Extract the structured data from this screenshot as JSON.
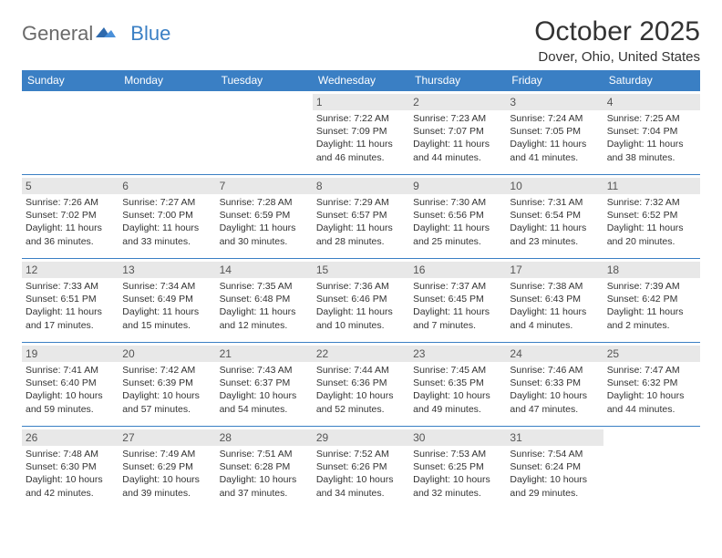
{
  "logo": {
    "part1": "General",
    "part2": "Blue"
  },
  "title": "October 2025",
  "location": "Dover, Ohio, United States",
  "colors": {
    "header_bg": "#3a7fc4",
    "header_text": "#ffffff",
    "daynum_bg": "#e8e8e8",
    "border": "#3a7fc4",
    "body_text": "#333333"
  },
  "columns": [
    "Sunday",
    "Monday",
    "Tuesday",
    "Wednesday",
    "Thursday",
    "Friday",
    "Saturday"
  ],
  "first_weekday_index": 3,
  "days": [
    {
      "n": 1,
      "sunrise": "7:22 AM",
      "sunset": "7:09 PM",
      "daylight": "11 hours and 46 minutes."
    },
    {
      "n": 2,
      "sunrise": "7:23 AM",
      "sunset": "7:07 PM",
      "daylight": "11 hours and 44 minutes."
    },
    {
      "n": 3,
      "sunrise": "7:24 AM",
      "sunset": "7:05 PM",
      "daylight": "11 hours and 41 minutes."
    },
    {
      "n": 4,
      "sunrise": "7:25 AM",
      "sunset": "7:04 PM",
      "daylight": "11 hours and 38 minutes."
    },
    {
      "n": 5,
      "sunrise": "7:26 AM",
      "sunset": "7:02 PM",
      "daylight": "11 hours and 36 minutes."
    },
    {
      "n": 6,
      "sunrise": "7:27 AM",
      "sunset": "7:00 PM",
      "daylight": "11 hours and 33 minutes."
    },
    {
      "n": 7,
      "sunrise": "7:28 AM",
      "sunset": "6:59 PM",
      "daylight": "11 hours and 30 minutes."
    },
    {
      "n": 8,
      "sunrise": "7:29 AM",
      "sunset": "6:57 PM",
      "daylight": "11 hours and 28 minutes."
    },
    {
      "n": 9,
      "sunrise": "7:30 AM",
      "sunset": "6:56 PM",
      "daylight": "11 hours and 25 minutes."
    },
    {
      "n": 10,
      "sunrise": "7:31 AM",
      "sunset": "6:54 PM",
      "daylight": "11 hours and 23 minutes."
    },
    {
      "n": 11,
      "sunrise": "7:32 AM",
      "sunset": "6:52 PM",
      "daylight": "11 hours and 20 minutes."
    },
    {
      "n": 12,
      "sunrise": "7:33 AM",
      "sunset": "6:51 PM",
      "daylight": "11 hours and 17 minutes."
    },
    {
      "n": 13,
      "sunrise": "7:34 AM",
      "sunset": "6:49 PM",
      "daylight": "11 hours and 15 minutes."
    },
    {
      "n": 14,
      "sunrise": "7:35 AM",
      "sunset": "6:48 PM",
      "daylight": "11 hours and 12 minutes."
    },
    {
      "n": 15,
      "sunrise": "7:36 AM",
      "sunset": "6:46 PM",
      "daylight": "11 hours and 10 minutes."
    },
    {
      "n": 16,
      "sunrise": "7:37 AM",
      "sunset": "6:45 PM",
      "daylight": "11 hours and 7 minutes."
    },
    {
      "n": 17,
      "sunrise": "7:38 AM",
      "sunset": "6:43 PM",
      "daylight": "11 hours and 4 minutes."
    },
    {
      "n": 18,
      "sunrise": "7:39 AM",
      "sunset": "6:42 PM",
      "daylight": "11 hours and 2 minutes."
    },
    {
      "n": 19,
      "sunrise": "7:41 AM",
      "sunset": "6:40 PM",
      "daylight": "10 hours and 59 minutes."
    },
    {
      "n": 20,
      "sunrise": "7:42 AM",
      "sunset": "6:39 PM",
      "daylight": "10 hours and 57 minutes."
    },
    {
      "n": 21,
      "sunrise": "7:43 AM",
      "sunset": "6:37 PM",
      "daylight": "10 hours and 54 minutes."
    },
    {
      "n": 22,
      "sunrise": "7:44 AM",
      "sunset": "6:36 PM",
      "daylight": "10 hours and 52 minutes."
    },
    {
      "n": 23,
      "sunrise": "7:45 AM",
      "sunset": "6:35 PM",
      "daylight": "10 hours and 49 minutes."
    },
    {
      "n": 24,
      "sunrise": "7:46 AM",
      "sunset": "6:33 PM",
      "daylight": "10 hours and 47 minutes."
    },
    {
      "n": 25,
      "sunrise": "7:47 AM",
      "sunset": "6:32 PM",
      "daylight": "10 hours and 44 minutes."
    },
    {
      "n": 26,
      "sunrise": "7:48 AM",
      "sunset": "6:30 PM",
      "daylight": "10 hours and 42 minutes."
    },
    {
      "n": 27,
      "sunrise": "7:49 AM",
      "sunset": "6:29 PM",
      "daylight": "10 hours and 39 minutes."
    },
    {
      "n": 28,
      "sunrise": "7:51 AM",
      "sunset": "6:28 PM",
      "daylight": "10 hours and 37 minutes."
    },
    {
      "n": 29,
      "sunrise": "7:52 AM",
      "sunset": "6:26 PM",
      "daylight": "10 hours and 34 minutes."
    },
    {
      "n": 30,
      "sunrise": "7:53 AM",
      "sunset": "6:25 PM",
      "daylight": "10 hours and 32 minutes."
    },
    {
      "n": 31,
      "sunrise": "7:54 AM",
      "sunset": "6:24 PM",
      "daylight": "10 hours and 29 minutes."
    }
  ],
  "labels": {
    "sunrise": "Sunrise:",
    "sunset": "Sunset:",
    "daylight": "Daylight:"
  }
}
